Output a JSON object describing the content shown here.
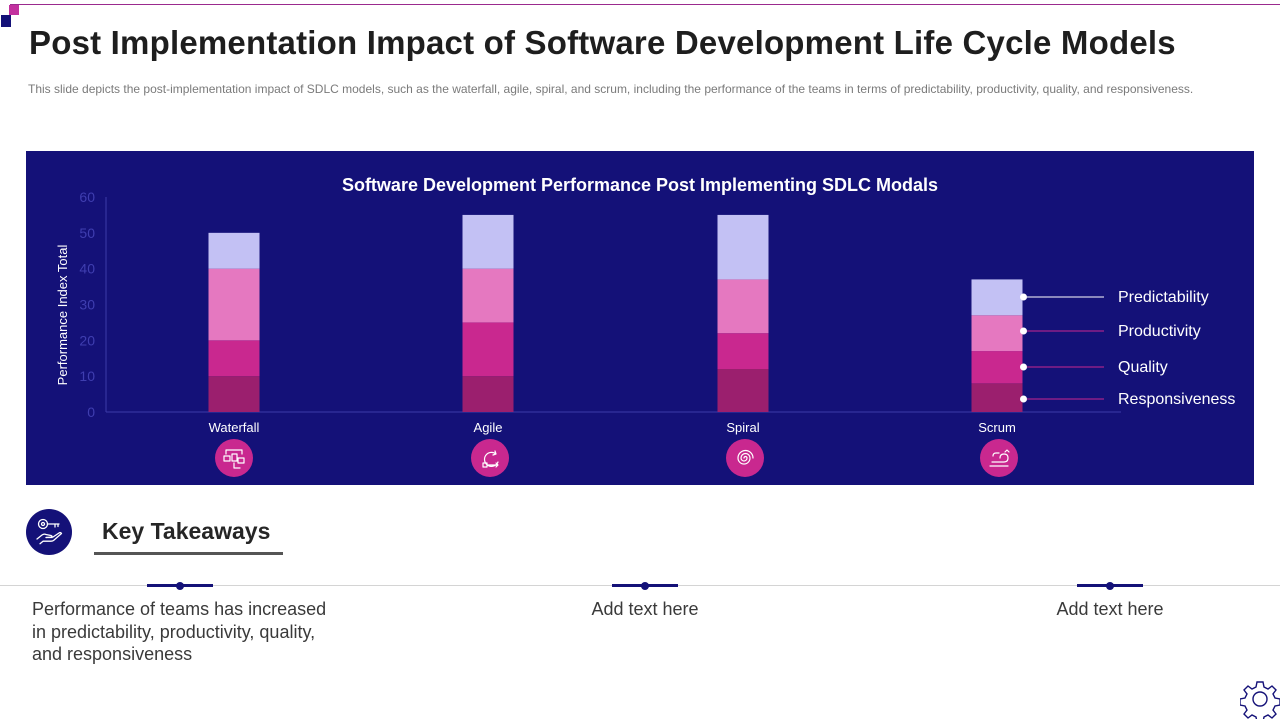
{
  "page": {
    "title": "Post Implementation Impact of Software Development Life Cycle Models",
    "subtitle": "This slide depicts the post-implementation  impact of SDLC models, such as the waterfall, agile, spiral, and scrum, including the performance  of the teams in terms of predictability, productivity, quality, and responsiveness."
  },
  "colors": {
    "panel_bg": "#141178",
    "accent_magenta": "#c2319f",
    "navy": "#141178"
  },
  "chart_data": {
    "type": "bar",
    "stacked": true,
    "title": "Software Development Performance Post Implementing SDLC Modals",
    "xlabel": "",
    "ylabel": "Performance Index Total",
    "ylim": [
      0,
      60
    ],
    "yticks": [
      0,
      10,
      20,
      30,
      40,
      50,
      60
    ],
    "grid": false,
    "legend_position": "right",
    "categories": [
      "Waterfall",
      "Agile",
      "Spiral",
      "Scrum"
    ],
    "category_icons": [
      "waterfall-model-icon",
      "agile-cycle-icon",
      "spiral-icon",
      "scrum-icon"
    ],
    "series": [
      {
        "name": "Responsiveness",
        "color": "#9b1f6e",
        "values": [
          10,
          10,
          12,
          8
        ]
      },
      {
        "name": "Quality",
        "color": "#c9288f",
        "values": [
          10,
          15,
          10,
          9
        ]
      },
      {
        "name": "Productivity",
        "color": "#e578c0",
        "values": [
          20,
          15,
          15,
          10
        ]
      },
      {
        "name": "Predictability",
        "color": "#c3c1f4",
        "values": [
          10,
          15,
          18,
          10
        ]
      }
    ],
    "legend": [
      "Predictability",
      "Productivity",
      "Quality",
      "Responsiveness"
    ]
  },
  "takeaways": {
    "heading": "Key Takeaways",
    "items": [
      {
        "text_lines": [
          "Performance of teams has increased",
          "in predictability, productivity, quality,",
          "and responsiveness"
        ]
      },
      {
        "text_lines": [
          "Add text here"
        ]
      },
      {
        "text_lines": [
          "Add text here"
        ]
      }
    ]
  }
}
